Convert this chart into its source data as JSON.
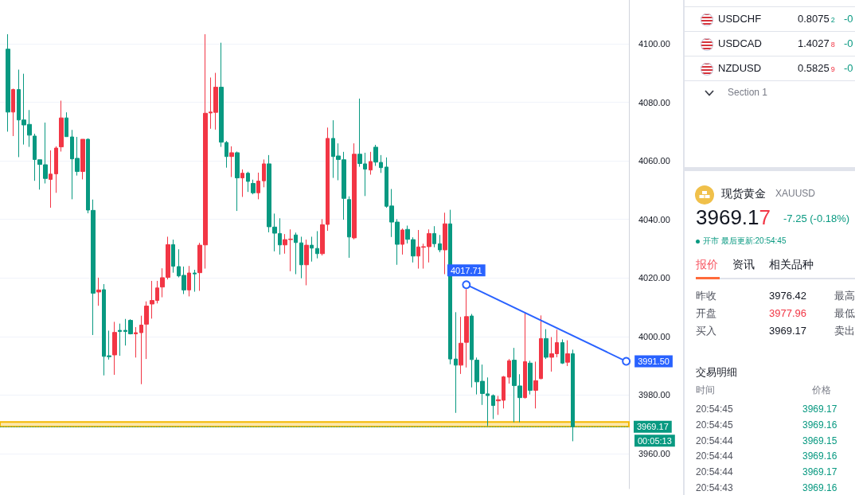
{
  "chart_data": [
    {
      "type": "candlestick",
      "categories": [
        null,
        null,
        null,
        null,
        null,
        null,
        null,
        null,
        null,
        null,
        null,
        null,
        null,
        null,
        null,
        null,
        null,
        null,
        null,
        null,
        null,
        null,
        null,
        null,
        null,
        null,
        null,
        null,
        null,
        null,
        null,
        null,
        null,
        null,
        null,
        null,
        null,
        null,
        null,
        null,
        null,
        null,
        null,
        null,
        null,
        null,
        null,
        null,
        null,
        null,
        null,
        null,
        null,
        null,
        null,
        null,
        null,
        null,
        null,
        null,
        null,
        null,
        null,
        null,
        null,
        null,
        null,
        null,
        null,
        null,
        null,
        null,
        null,
        null,
        null,
        null,
        null,
        null,
        null,
        null,
        null,
        null,
        null,
        null,
        null,
        null,
        null,
        null,
        null,
        null,
        null,
        null,
        null,
        null,
        null,
        null,
        null,
        null,
        null,
        null,
        null,
        null,
        null,
        null,
        null,
        null,
        null,
        null,
        null,
        null,
        null,
        null,
        null,
        null,
        null,
        null,
        null,
        null
      ],
      "ohlc": [
        null,
        [
          4098.2,
          4103.3,
          4070.0,
          4076.7
        ],
        [
          4076.7,
          4084.7,
          4068.5,
          4084.4
        ],
        [
          4084.4,
          4091.2,
          4061.3,
          4074.0
        ],
        [
          4074.0,
          4089.8,
          4065.6,
          4072.3
        ],
        [
          4072.5,
          4077.4,
          4064.8,
          4068.8
        ],
        [
          4068.5,
          4069.3,
          4053.2,
          4060.5
        ],
        [
          4060.4,
          4060.4,
          4050.2,
          4058.8
        ],
        [
          4058.7,
          4073.1,
          4052.3,
          4054.0
        ],
        [
          4053.7,
          4063.6,
          4044.0,
          4055.5
        ],
        [
          4055.6,
          4065.0,
          4049.1,
          4064.4
        ],
        [
          4064.8,
          4080.6,
          4063.2,
          4074.7
        ],
        [
          4074.7,
          4076.6,
          4068.3,
          4068.3
        ],
        [
          4068.2,
          4070.6,
          4046.9,
          4060.7
        ],
        [
          4060.9,
          4068.2,
          4055.0,
          4056.4
        ],
        [
          4056.4,
          4067.4,
          4053.7,
          4067.4
        ],
        [
          4067.4,
          4067.7,
          4042.1,
          4043.2
        ],
        [
          4043.1,
          4046.8,
          4000.5,
          4014.8
        ],
        [
          4015.2,
          4020.1,
          4010.5,
          4015.9
        ],
        [
          4016.0,
          4017.9,
          3986.7,
          3993.2
        ],
        [
          3993.4,
          4002.0,
          3992.1,
          3993.1
        ],
        [
          3993.7,
          4005.0,
          3986.9,
          4001.4
        ],
        [
          4002.1,
          4004.4,
          3993.4,
          4001.7
        ],
        [
          4002.1,
          4006.0,
          3996.9,
          4001.7
        ],
        [
          4005.5,
          4005.9,
          4000.7,
          4000.9
        ],
        [
          4000.9,
          4003.2,
          3992.8,
          4001.3
        ],
        [
          4001.3,
          4007.1,
          3983.7,
          4003.9
        ],
        [
          4004.2,
          4012.0,
          3992.3,
          4010.4
        ],
        [
          4011.1,
          4019.0,
          4006.1,
          4012.3
        ],
        [
          4012.3,
          4019.0,
          4011.3,
          4016.6
        ],
        [
          4016.9,
          4023.3,
          4013.4,
          4020.1
        ],
        [
          4020.2,
          4034.1,
          4019.5,
          4031.4
        ],
        [
          4031.4,
          4033.1,
          4021.8,
          4024.0
        ],
        [
          4023.9,
          4029.8,
          4020.2,
          4020.7
        ],
        [
          4020.9,
          4023.9,
          4014.5,
          4015.9
        ],
        [
          4015.9,
          4024.1,
          4013.7,
          4021.7
        ],
        [
          4021.7,
          4022.8,
          4015.3,
          4021.4
        ],
        [
          4021.8,
          4032.0,
          4015.6,
          4031.2
        ],
        [
          4031.3,
          4103.3,
          4023.2,
          4076.3
        ],
        [
          4076.4,
          4088.5,
          4071.0,
          4076.7
        ],
        [
          4076.6,
          4090.1,
          4070.7,
          4085.2
        ],
        [
          4085.2,
          4100.4,
          4064.8,
          4066.4
        ],
        [
          4066.3,
          4066.8,
          4057.7,
          4061.5
        ],
        [
          4061.5,
          4065.0,
          4054.5,
          4062.8
        ],
        [
          4062.8,
          4063.2,
          4042.9,
          4054.2
        ],
        [
          4054.2,
          4057.1,
          4047.7,
          4055.8
        ],
        [
          4055.8,
          4056.3,
          4049.4,
          4053.0
        ],
        [
          4052.3,
          4053.6,
          4048.6,
          4049.1
        ],
        [
          4049.1,
          4056.0,
          4046.9,
          4053.1
        ],
        [
          4053.2,
          4060.5,
          4051.0,
          4059.0
        ],
        [
          4059.0,
          4062.0,
          4035.6,
          4037.5
        ],
        [
          4037.4,
          4042.0,
          4029.1,
          4035.3
        ],
        [
          4035.2,
          4040.4,
          4028.0,
          4031.3
        ],
        [
          4031.3,
          4035.0,
          4028.3,
          4033.1
        ],
        [
          4033.1,
          4036.6,
          4022.3,
          4033.3
        ],
        [
          4034.7,
          4035.5,
          4021.3,
          4032.1
        ],
        [
          4032.0,
          4034.1,
          4019.9,
          4024.5
        ],
        [
          4024.5,
          4033.1,
          4017.5,
          4031.2
        ],
        [
          4031.2,
          4034.1,
          4025.6,
          4030.2
        ],
        [
          4030.1,
          4036.0,
          4026.7,
          4028.3
        ],
        [
          4028.3,
          4040.1,
          4027.7,
          4038.2
        ],
        [
          4038.3,
          4071.4,
          4036.1,
          4067.7
        ],
        [
          4067.7,
          4073.9,
          4054.2,
          4061.5
        ],
        [
          4061.7,
          4066.0,
          4053.4,
          4060.5
        ],
        [
          4060.4,
          4063.1,
          4039.9,
          4047.2
        ],
        [
          4046.8,
          4047.9,
          4026.9,
          4034.0
        ],
        [
          4033.7,
          4066.0,
          4033.2,
          4062.3
        ],
        [
          4062.3,
          4081.3,
          4058.0,
          4059.1
        ],
        [
          4059.0,
          4062.8,
          4048.0,
          4057.2
        ],
        [
          4056.9,
          4063.1,
          4055.3,
          4059.8
        ],
        [
          4064.7,
          4065.5,
          4058.3,
          4059.6
        ],
        [
          4059.5,
          4062.0,
          4055.9,
          4057.7
        ],
        [
          4057.9,
          4061.2,
          4044.0,
          4044.5
        ],
        [
          4044.6,
          4050.4,
          4034.0,
          4039.1
        ],
        [
          4039.1,
          4040.1,
          4024.5,
          4031.5
        ],
        [
          4031.5,
          4036.9,
          4028.0,
          4036.4
        ],
        [
          4036.6,
          4037.9,
          4031.8,
          4033.2
        ],
        [
          4033.1,
          4033.9,
          4025.3,
          4027.5
        ],
        [
          4027.5,
          4036.4,
          4023.2,
          4030.6
        ],
        [
          4030.5,
          4031.7,
          4023.2,
          4030.7
        ],
        [
          4030.7,
          4036.6,
          4025.3,
          4035.2
        ],
        [
          4035.2,
          4037.7,
          4030.5,
          4031.7
        ],
        [
          4031.7,
          4034.7,
          4028.8,
          4029.6
        ],
        [
          4029.6,
          4042.3,
          4021.3,
          4038.5
        ],
        [
          4038.5,
          4043.3,
          3990.5,
          3992.3
        ],
        [
          3992.3,
          4008.3,
          3973.9,
          3990.2
        ],
        [
          3990.2,
          4006.7,
          3987.2,
          3997.7
        ],
        [
          3998.0,
          4016.2,
          3989.4,
          4006.8
        ],
        [
          4007.0,
          4007.7,
          3982.6,
          3992.1
        ],
        [
          3991.9,
          3992.8,
          3980.2,
          3984.5
        ],
        [
          3984.7,
          3990.4,
          3976.6,
          3980.5
        ],
        [
          3980.4,
          3986.0,
          3969.4,
          3979.8
        ],
        [
          3979.8,
          3980.2,
          3971.8,
          3976.4
        ],
        [
          3978.0,
          3979.7,
          3973.2,
          3978.4
        ],
        [
          3978.2,
          3986.5,
          3975.4,
          3986.2
        ],
        [
          3986.1,
          3992.3,
          3983.9,
          3991.7
        ],
        [
          3991.9,
          3996.1,
          3970.7,
          3983.2
        ],
        [
          3983.1,
          3987.1,
          3970.7,
          3979.1
        ],
        [
          3979.1,
          4008.3,
          3978.8,
          3991.4
        ],
        [
          3990.9,
          3991.7,
          3980.2,
          3981.6
        ],
        [
          3981.6,
          3991.4,
          3975.4,
          3984.9
        ],
        [
          3985.6,
          4007.2,
          3985.4,
          3999.3
        ],
        [
          3999.3,
          4002.5,
          3992.3,
          3992.9
        ],
        [
          3992.9,
          3999.8,
          3988.0,
          3994.1
        ],
        [
          3994.1,
          4002.3,
          3992.9,
          3997.9
        ],
        [
          3997.9,
          3999.0,
          3990.6,
          3990.9
        ],
        [
          3991.2,
          3998.7,
          3989.9,
          3994.1
        ],
        [
          3994.1,
          3995.5,
          3964.2,
          3969.17
        ],
        null,
        null,
        null,
        null,
        null,
        null,
        null,
        null,
        null,
        null
      ],
      "colors": [
        null,
        "#089981",
        "#f23645",
        "#089981",
        "#089981",
        "#089981",
        "#089981",
        "#089981",
        "#089981",
        "#f23645",
        "#f23645",
        "#f23645",
        "#089981",
        "#089981",
        "#089981",
        "#f23645",
        "#089981",
        "#089981",
        "#f23645",
        "#089981",
        "#089981",
        "#f23645",
        "#089981",
        "#089981",
        "#089981",
        "#f23645",
        "#f23645",
        "#f23645",
        "#f23645",
        "#f23645",
        "#f23645",
        "#f23645",
        "#089981",
        "#089981",
        "#089981",
        "#f23645",
        "#089981",
        "#f23645",
        "#f23645",
        "#f23645",
        "#f23645",
        "#089981",
        "#089981",
        "#f23645",
        "#089981",
        "#f23645",
        "#089981",
        "#089981",
        "#f23645",
        "#f23645",
        "#089981",
        "#089981",
        "#089981",
        "#f23645",
        "#f23645",
        "#089981",
        "#089981",
        "#f23645",
        "#089981",
        "#089981",
        "#f23645",
        "#f23645",
        "#089981",
        "#089981",
        "#089981",
        "#089981",
        "#f23645",
        "#089981",
        "#089981",
        "#f23645",
        "#089981",
        "#089981",
        "#089981",
        "#089981",
        "#089981",
        "#f23645",
        "#089981",
        "#089981",
        "#f23645",
        "#f23645",
        "#f23645",
        "#089981",
        "#089981",
        "#f23645",
        "#089981",
        "#089981",
        "#f23645",
        "#f23645",
        "#089981",
        "#089981",
        "#089981",
        "#089981",
        "#089981",
        "#f23645",
        "#f23645",
        "#f23645",
        "#089981",
        "#089981",
        "#f23645",
        "#089981",
        "#f23645",
        "#f23645",
        "#089981",
        "#f23645",
        "#f23645",
        "#089981",
        "#f23645",
        "#089981",
        null,
        null,
        null,
        null,
        null,
        null,
        null,
        null,
        null,
        null
      ],
      "series": [
        {
          "type": "line",
          "color": "#2962ff",
          "marker": "circle",
          "values": [
            null,
            null,
            null,
            null,
            null,
            null,
            null,
            null,
            null,
            null,
            null,
            null,
            null,
            null,
            null,
            null,
            null,
            null,
            null,
            null,
            null,
            null,
            null,
            null,
            null,
            null,
            null,
            null,
            null,
            null,
            null,
            null,
            null,
            null,
            null,
            null,
            null,
            null,
            null,
            null,
            null,
            null,
            null,
            null,
            null,
            null,
            null,
            null,
            null,
            null,
            null,
            null,
            null,
            null,
            null,
            null,
            null,
            null,
            null,
            null,
            null,
            null,
            null,
            null,
            null,
            null,
            null,
            null,
            null,
            null,
            null,
            null,
            null,
            null,
            null,
            null,
            null,
            null,
            null,
            null,
            null,
            null,
            null,
            null,
            null,
            null,
            null,
            4017.71,
            null,
            null,
            null,
            null,
            null,
            null,
            null,
            null,
            null,
            null,
            null,
            null,
            null,
            null,
            null,
            null,
            null,
            null,
            null,
            null,
            null,
            null,
            null,
            null,
            null,
            null,
            null,
            null,
            null,
            3991.5
          ],
          "value_labels": [
            null,
            null,
            null,
            null,
            null,
            null,
            null,
            null,
            null,
            null,
            null,
            null,
            null,
            null,
            null,
            null,
            null,
            null,
            null,
            null,
            null,
            null,
            null,
            null,
            null,
            null,
            null,
            null,
            null,
            null,
            null,
            null,
            null,
            null,
            null,
            null,
            null,
            null,
            null,
            null,
            null,
            null,
            null,
            null,
            null,
            null,
            null,
            null,
            null,
            null,
            null,
            null,
            null,
            null,
            null,
            null,
            null,
            null,
            null,
            null,
            null,
            null,
            null,
            null,
            null,
            null,
            null,
            null,
            null,
            null,
            null,
            null,
            null,
            null,
            null,
            null,
            null,
            null,
            null,
            null,
            null,
            null,
            null,
            null,
            null,
            null,
            null,
            "4017.71",
            null,
            null,
            null,
            null,
            null,
            null,
            null,
            null,
            null,
            null,
            null,
            null,
            null,
            null,
            null,
            null,
            null,
            null,
            null,
            null,
            null,
            null,
            null,
            null,
            null,
            null,
            null,
            null,
            null,
            "3991.50"
          ]
        }
      ],
      "ylim": [
        3948,
        4115
      ],
      "yticks": [
        {
          "value": 3960,
          "label": "3960.00"
        },
        {
          "value": 3980,
          "label": "3980.00"
        },
        {
          "value": 4000,
          "label": "4000.00"
        },
        {
          "value": 4020,
          "label": "4020.00"
        },
        {
          "value": 4040,
          "label": "4040.00"
        },
        {
          "value": 4060,
          "label": "4060.00"
        },
        {
          "value": 4080,
          "label": "4080.00"
        },
        {
          "value": 4100,
          "label": "4100.00"
        }
      ],
      "grid": "y",
      "ref_lines": [
        {
          "axis": "y",
          "value": 3969.17,
          "label": "3969.17",
          "color": "#089981",
          "line_style": "dotted"
        }
      ],
      "bands": [
        {
          "axis": "y",
          "from": 3969.2,
          "to": 3970.8,
          "color": "#f5b800"
        }
      ],
      "annotations": [
        "00:05:13"
      ]
    },
    {
      "type": "other",
      "annotations": [
        "USDCHF",
        "0.80752",
        "-0",
        "USDCAD",
        "1.40278",
        "-0",
        "NZDUSD",
        "0.58259",
        "-0",
        "Section 1",
        "现货黄金",
        "XAUUSD",
        "3969.17",
        "-7.25 (-0.18%)",
        "开市 最后更新:20:54:45",
        "报价",
        "资讯",
        "相关品种",
        "昨收",
        "3976.42",
        "最高",
        "开盘",
        "3977.96",
        "最低",
        "买入",
        "3969.17",
        "卖出",
        "交易明细",
        "时间",
        "价格",
        "20:54:45",
        "3969.17",
        "20:54:45",
        "3969.16",
        "20:54:44",
        "3969.15",
        "20:54:44",
        "3969.16",
        "20:54:44",
        "3969.17",
        "20:54:43",
        "3969.16"
      ]
    }
  ]
}
